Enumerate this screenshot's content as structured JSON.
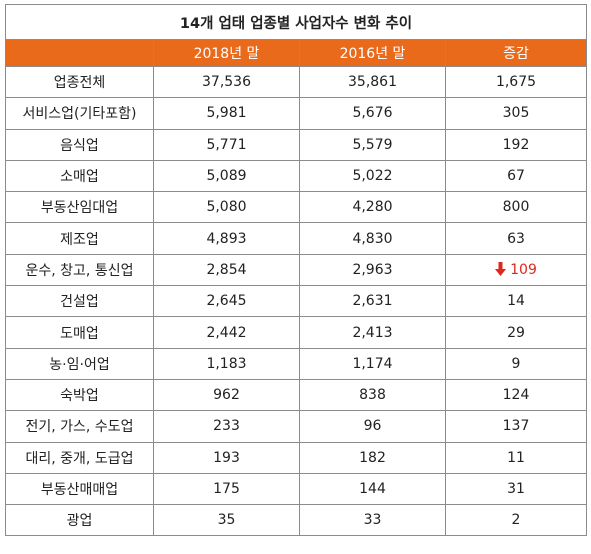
{
  "table": {
    "title": "14개 업태 업종별 사업자수 변화 추이",
    "headers": [
      "",
      "2018년 말",
      "2016년 말",
      "증감"
    ],
    "rows": [
      {
        "category": "업종전체",
        "y2018": "37,536",
        "y2016": "35,861",
        "change": "1,675",
        "decrease": false
      },
      {
        "category": "서비스업(기타포함)",
        "y2018": "5,981",
        "y2016": "5,676",
        "change": "305",
        "decrease": false
      },
      {
        "category": "음식업",
        "y2018": "5,771",
        "y2016": "5,579",
        "change": "192",
        "decrease": false
      },
      {
        "category": "소매업",
        "y2018": "5,089",
        "y2016": "5,022",
        "change": "67",
        "decrease": false
      },
      {
        "category": "부동산임대업",
        "y2018": "5,080",
        "y2016": "4,280",
        "change": "800",
        "decrease": false
      },
      {
        "category": "제조업",
        "y2018": "4,893",
        "y2016": "4,830",
        "change": "63",
        "decrease": false
      },
      {
        "category": "운수, 창고, 통신업",
        "y2018": "2,854",
        "y2016": "2,963",
        "change": "109",
        "decrease": true
      },
      {
        "category": "건설업",
        "y2018": "2,645",
        "y2016": "2,631",
        "change": "14",
        "decrease": false
      },
      {
        "category": "도매업",
        "y2018": "2,442",
        "y2016": "2,413",
        "change": "29",
        "decrease": false
      },
      {
        "category": "농·임·어업",
        "y2018": "1,183",
        "y2016": "1,174",
        "change": "9",
        "decrease": false
      },
      {
        "category": "숙박업",
        "y2018": "962",
        "y2016": "838",
        "change": "124",
        "decrease": false
      },
      {
        "category": "전기, 가스, 수도업",
        "y2018": "233",
        "y2016": "96",
        "change": "137",
        "decrease": false
      },
      {
        "category": "대리, 중개, 도급업",
        "y2018": "193",
        "y2016": "182",
        "change": "11",
        "decrease": false
      },
      {
        "category": "부동산매매업",
        "y2018": "175",
        "y2016": "144",
        "change": "31",
        "decrease": false
      },
      {
        "category": "광업",
        "y2018": "35",
        "y2016": "33",
        "change": "2",
        "decrease": false
      }
    ]
  },
  "colors": {
    "header_bg": "#ea6a1c",
    "header_text": "#ffffff",
    "decrease": "#e0271e",
    "border": "#8c8c8c"
  },
  "icons": {
    "decrease": "down-arrow-icon"
  }
}
